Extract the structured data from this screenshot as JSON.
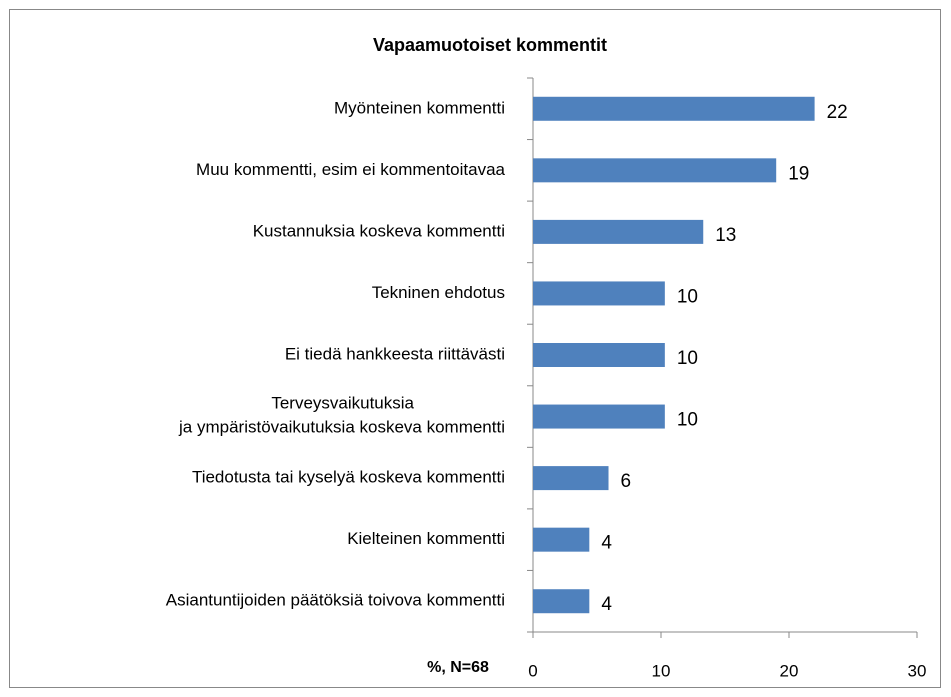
{
  "chart_data": {
    "type": "bar",
    "orientation": "horizontal",
    "title": "Vapaamuotoiset kommentit",
    "xlabel": "%, N=68",
    "categories": [
      "Myönteinen kommentti",
      "Muu kommentti, esim ei kommentoitavaa",
      "Kustannuksia koskeva kommentti",
      "Tekninen ehdotus",
      "Ei tiedä hankkeesta riittävästi",
      "Terveysvaikutuksia ja ympäristövaikutuksia koskeva kommentti",
      "Tiedotusta tai kyselyä koskeva kommentti",
      "Kielteinen kommentti",
      "Asiantuntijoiden päätöksiä toivova kommentti"
    ],
    "values": [
      22,
      19,
      13.3,
      10.3,
      10.3,
      10.3,
      5.9,
      4.4,
      4.4
    ],
    "value_labels": [
      "22",
      "19",
      "13",
      "10",
      "10",
      "10",
      "6",
      "4",
      "4"
    ],
    "color": "#4f81bd",
    "xlim": [
      0,
      30
    ],
    "xticks": [
      0,
      10,
      20,
      30
    ],
    "grid": false
  }
}
